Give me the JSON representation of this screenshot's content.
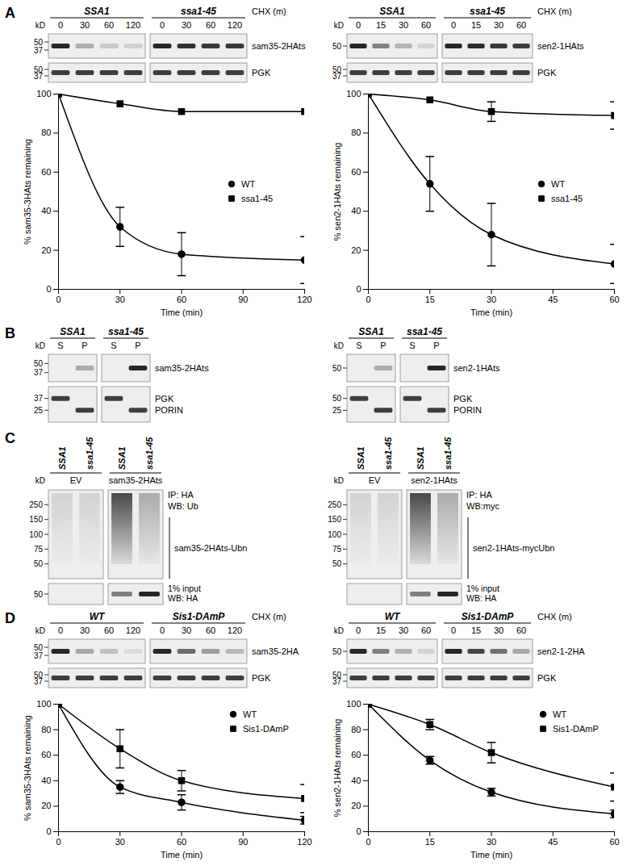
{
  "chart_data": [
    {
      "type": "line",
      "x": [
        0,
        30,
        60,
        120
      ],
      "xlim": [
        0,
        120
      ],
      "xticks": [
        0,
        30,
        60,
        90,
        120
      ],
      "ylim": [
        0,
        100
      ],
      "yticks": [
        0,
        20,
        40,
        60,
        80,
        100
      ],
      "x_label": "Time (min)",
      "y_label": "% sam35-3HAts remaining",
      "legend": "right",
      "series": [
        {
          "name": "WT",
          "color": "#000000",
          "marker": "circle",
          "values": [
            100,
            32,
            18,
            15
          ],
          "errors": [
            null,
            10,
            11,
            12
          ]
        },
        {
          "name": "ssa1-45",
          "color": "#000000",
          "marker": "square",
          "values": [
            100,
            95,
            91,
            91
          ],
          "errors": [
            null,
            null,
            null,
            null
          ]
        }
      ]
    },
    {
      "type": "line",
      "x": [
        0,
        15,
        30,
        60
      ],
      "xlim": [
        0,
        60
      ],
      "xticks": [
        0,
        15,
        30,
        45,
        60
      ],
      "ylim": [
        0,
        100
      ],
      "yticks": [
        0,
        20,
        40,
        60,
        80,
        100
      ],
      "x_label": "Time (min)",
      "y_label": "% sen2-1HAts remaining",
      "legend": "right",
      "series": [
        {
          "name": "WT",
          "color": "#000000",
          "marker": "circle",
          "values": [
            100,
            54,
            28,
            13
          ],
          "errors": [
            null,
            14,
            16,
            10
          ]
        },
        {
          "name": "ssa1-45",
          "color": "#000000",
          "marker": "square",
          "values": [
            100,
            97,
            91,
            89
          ],
          "errors": [
            null,
            null,
            5,
            7
          ]
        }
      ]
    },
    {
      "type": "line",
      "x": [
        0,
        30,
        60,
        120
      ],
      "xlim": [
        0,
        120
      ],
      "xticks": [
        0,
        30,
        60,
        90,
        120
      ],
      "ylim": [
        0,
        100
      ],
      "yticks": [
        0,
        20,
        40,
        60,
        80,
        100
      ],
      "x_label": "Time (min)",
      "y_label": "% sam35-3HAts remaining",
      "legend": "top-right",
      "series": [
        {
          "name": "WT",
          "color": "#000000",
          "marker": "circle",
          "values": [
            100,
            35,
            23,
            9
          ],
          "errors": [
            null,
            5,
            6,
            3
          ]
        },
        {
          "name": "Sis1-DAmP",
          "color": "#000000",
          "marker": "square",
          "values": [
            100,
            65,
            40,
            26
          ],
          "errors": [
            null,
            15,
            8,
            11
          ]
        }
      ]
    },
    {
      "type": "line",
      "x": [
        0,
        15,
        30,
        60
      ],
      "xlim": [
        0,
        60
      ],
      "xticks": [
        0,
        15,
        30,
        45,
        60
      ],
      "ylim": [
        0,
        100
      ],
      "yticks": [
        0,
        20,
        40,
        60,
        80,
        100
      ],
      "x_label": "Time (min)",
      "y_label": "% sen2-1HAts remaining",
      "legend": "top-right",
      "series": [
        {
          "name": "WT",
          "color": "#000000",
          "marker": "circle",
          "values": [
            100,
            56,
            31,
            14
          ],
          "errors": [
            null,
            3,
            3,
            3
          ]
        },
        {
          "name": "Sis1-DAmP",
          "color": "#000000",
          "marker": "square",
          "values": [
            100,
            84,
            62,
            35
          ],
          "errors": [
            null,
            4,
            8,
            11
          ]
        }
      ]
    }
  ],
  "panels": [
    {
      "label": "A",
      "blots": [
        {
          "marker_unit": "kD",
          "lane_title": "CHX (m)",
          "groups": [
            {
              "label": "SSA1",
              "lanes": [
                "0",
                "30",
                "60",
                "120"
              ]
            },
            {
              "label": "ssa1-45",
              "lanes": [
                "0",
                "30",
                "60",
                "120"
              ]
            }
          ],
          "rows": [
            {
              "labels": [
                "sam35-2HAts"
              ],
              "markers": [
                50,
                37
              ]
            },
            {
              "labels": [
                "PGK"
              ],
              "markers": [
                50,
                37
              ]
            }
          ]
        },
        {
          "marker_unit": "kD",
          "lane_title": "CHX (m)",
          "groups": [
            {
              "label": "SSA1",
              "lanes": [
                "0",
                "15",
                "30",
                "60"
              ]
            },
            {
              "label": "ssa1-45",
              "lanes": [
                "0",
                "15",
                "30",
                "60"
              ]
            }
          ],
          "rows": [
            {
              "labels": [
                "sen2-1HAts"
              ],
              "markers": [
                50
              ]
            },
            {
              "labels": [
                "PGK"
              ],
              "markers": [
                50,
                37
              ]
            }
          ]
        }
      ]
    },
    {
      "label": "B",
      "blots": [
        {
          "marker_unit": "kD",
          "groups": [
            {
              "label": "SSA1",
              "lanes": [
                "S",
                "P"
              ]
            },
            {
              "label": "ssa1-45",
              "lanes": [
                "S",
                "P"
              ]
            }
          ],
          "rows": [
            {
              "labels": [
                "sam35-2HAts"
              ],
              "markers": [
                50,
                37
              ]
            },
            {
              "labels": [
                "PGK",
                "PORIN"
              ],
              "markers": [
                37,
                25
              ]
            }
          ]
        },
        {
          "marker_unit": "kD",
          "groups": [
            {
              "label": "SSA1",
              "lanes": [
                "S",
                "P"
              ]
            },
            {
              "label": "ssa1-45",
              "lanes": [
                "S",
                "P"
              ]
            }
          ],
          "rows": [
            {
              "labels": [
                "sen2-1HAts"
              ],
              "markers": [
                50
              ]
            },
            {
              "labels": [
                "PGK",
                "PORIN"
              ],
              "markers": [
                50,
                25
              ]
            }
          ]
        }
      ]
    },
    {
      "label": "C",
      "blots": [
        {
          "marker_unit": "kD",
          "groups": [
            {
              "label": "EV",
              "lanes": [
                "SSA1",
                "ssa1-45"
              ]
            },
            {
              "label": "sam35-2HAts",
              "lanes": [
                "SSA1",
                "ssa1-45"
              ]
            }
          ],
          "rows": [
            {
              "labels": [
                "IP: HA",
                "WB: Ub"
              ],
              "bracket": "sam35-2HAts-Ubn",
              "markers": [
                250,
                150,
                100,
                75,
                50
              ]
            },
            {
              "labels": [
                "1% input",
                "WB: HA"
              ],
              "markers": [
                50
              ]
            }
          ]
        },
        {
          "marker_unit": "kD",
          "groups": [
            {
              "label": "EV",
              "lanes": [
                "SSA1",
                "ssa1-45"
              ]
            },
            {
              "label": "sen2-1HAts",
              "lanes": [
                "SSA1",
                "ssa1-45"
              ]
            }
          ],
          "rows": [
            {
              "labels": [
                "IP: HA",
                "WB:myc"
              ],
              "bracket": "sen2-1HAts-mycUbn",
              "markers": [
                250,
                150,
                100,
                75,
                50
              ]
            },
            {
              "labels": [
                "1% input",
                "WB: HA"
              ],
              "markers": []
            }
          ]
        }
      ]
    },
    {
      "label": "D",
      "blots": [
        {
          "marker_unit": "kD",
          "lane_title": "CHX (m)",
          "groups": [
            {
              "label": "WT",
              "lanes": [
                "0",
                "30",
                "60",
                "120"
              ]
            },
            {
              "label": "Sis1-DAmP",
              "lanes": [
                "0",
                "30",
                "60",
                "120"
              ]
            }
          ],
          "rows": [
            {
              "labels": [
                "sam35-2HA"
              ],
              "markers": [
                50,
                37
              ]
            },
            {
              "labels": [
                "PGK"
              ],
              "markers": [
                50,
                37
              ]
            }
          ]
        },
        {
          "marker_unit": "kD",
          "lane_title": "CHX (m)",
          "groups": [
            {
              "label": "WT",
              "lanes": [
                "0",
                "15",
                "30",
                "60"
              ]
            },
            {
              "label": "Sis1-DAmP",
              "lanes": [
                "0",
                "15",
                "30",
                "60"
              ]
            }
          ],
          "rows": [
            {
              "labels": [
                "sen2-1-2HA"
              ],
              "markers": [
                50
              ]
            },
            {
              "labels": [
                "PGK"
              ],
              "markers": [
                50,
                37
              ]
            }
          ]
        }
      ]
    }
  ]
}
